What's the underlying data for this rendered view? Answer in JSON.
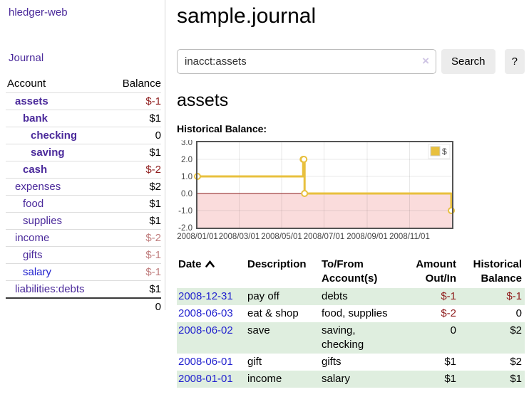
{
  "colors": {
    "link_purple": "#4b2a9b",
    "link_blue": "#2222cf",
    "negative_strong": "#8f1d1d",
    "negative_muted": "#c07e7e",
    "row_stripe_green": "#dfeedf",
    "chart_line_gold": "#e8c03e",
    "chart_negative_fill": "#fadcdc",
    "chart_zero_line": "#8b1a1a",
    "chart_border": "#545454",
    "clear_icon_lavender": "#cfc5e4"
  },
  "sidebar": {
    "app_title": "hledger-web",
    "journal_link": "Journal",
    "accounts_table": {
      "headers": {
        "account": "Account",
        "balance": "Balance"
      },
      "rows": [
        {
          "name": "assets",
          "depth": 1,
          "balance": "$-1",
          "emph": true
        },
        {
          "name": "bank",
          "depth": 2,
          "balance": "$1",
          "emph": true
        },
        {
          "name": "checking",
          "depth": 3,
          "balance": "0",
          "emph": true
        },
        {
          "name": "saving",
          "depth": 3,
          "balance": "$1",
          "emph": true
        },
        {
          "name": "cash",
          "depth": 2,
          "balance": "$-2",
          "emph": true
        },
        {
          "name": "expenses",
          "depth": 1,
          "balance": "$2",
          "emph": false
        },
        {
          "name": "food",
          "depth": 2,
          "balance": "$1",
          "emph": false
        },
        {
          "name": "supplies",
          "depth": 2,
          "balance": "$1",
          "emph": false
        },
        {
          "name": "income",
          "depth": 1,
          "balance": "$-2",
          "emph": false
        },
        {
          "name": "gifts",
          "depth": 2,
          "balance": "$-1",
          "emph": false
        },
        {
          "name": "salary",
          "depth": 2,
          "balance": "$-1",
          "emph": false,
          "blue": true
        },
        {
          "name": "liabilities:debts",
          "depth": 1,
          "balance": "$1",
          "emph": false
        }
      ],
      "total": "0"
    }
  },
  "main": {
    "title": "sample.journal",
    "search": {
      "value": "inacct:assets",
      "clear_icon": "×",
      "search_button": "Search",
      "help_button": "?"
    },
    "account_heading": "assets",
    "chart_label": "Historical Balance:"
  },
  "register": {
    "headers": {
      "date": "Date",
      "description": "Description",
      "tofrom": "To/From Account(s)",
      "amount": "Amount Out/In",
      "balance": "Historical Balance"
    },
    "rows": [
      {
        "date": "2008-12-31",
        "description": "pay off",
        "accounts": "debts",
        "amount": "$-1",
        "balance": "$-1"
      },
      {
        "date": "2008-06-03",
        "description": "eat & shop",
        "accounts": "food, supplies",
        "amount": "$-2",
        "balance": "0"
      },
      {
        "date": "2008-06-02",
        "description": "save",
        "accounts": "saving, checking",
        "amount": "0",
        "balance": "$2"
      },
      {
        "date": "2008-06-01",
        "description": "gift",
        "accounts": "gifts",
        "amount": "$1",
        "balance": "$2"
      },
      {
        "date": "2008-01-01",
        "description": "income",
        "accounts": "salary",
        "amount": "$1",
        "balance": "$1"
      }
    ]
  },
  "chart_data": {
    "type": "line",
    "style": "step",
    "title": "Historical Balance:",
    "series": [
      {
        "name": "$",
        "points": [
          [
            "2008-01-01",
            1
          ],
          [
            "2008-06-01",
            2
          ],
          [
            "2008-06-02",
            2
          ],
          [
            "2008-06-03",
            0
          ],
          [
            "2008-12-31",
            -1
          ]
        ]
      }
    ],
    "x_domain": [
      "2008-01-01",
      "2009-01-01"
    ],
    "x_ticks": [
      "2008/01/01",
      "2008/03/01",
      "2008/05/01",
      "2008/07/01",
      "2008/09/01",
      "2008/11/01"
    ],
    "y_ticks": [
      3.0,
      2.0,
      1.0,
      0.0,
      -1.0,
      -2.0
    ],
    "ylim": [
      -2,
      3
    ],
    "grid": true,
    "legend": [
      "$"
    ],
    "legend_position": "top-right",
    "negative_region_shaded": true
  }
}
